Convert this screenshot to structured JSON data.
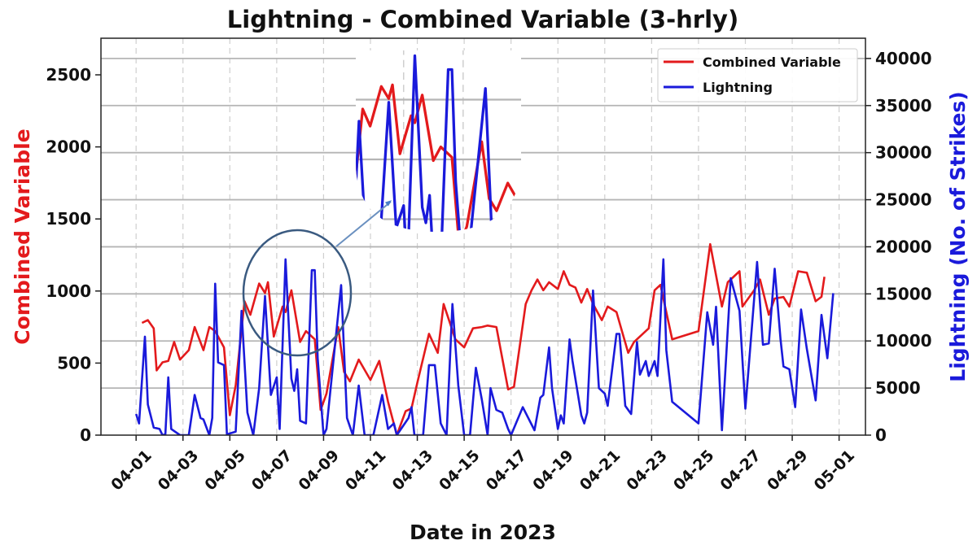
{
  "chart_data": {
    "type": "line",
    "title": "Lightning - Combined Variable (3-hrly)",
    "xlabel": "Date in 2023",
    "ylabel_left": "Combined Variable",
    "ylabel_right": "Lightning (No. of Strikes)",
    "year": 2023,
    "xlim": [
      "03-30 12:00",
      "05-02 03:00"
    ],
    "ylim_left": [
      0,
      2754
    ],
    "ylim_right": [
      0,
      42150
    ],
    "x_ticks": [
      "04-01",
      "04-03",
      "04-05",
      "04-07",
      "04-09",
      "04-11",
      "04-13",
      "04-15",
      "04-17",
      "04-19",
      "04-21",
      "04-23",
      "04-25",
      "04-27",
      "04-29",
      "05-01"
    ],
    "y_ticks_left": [
      0,
      500,
      1000,
      1500,
      2000,
      2500
    ],
    "y_ticks_right": [
      0,
      5000,
      10000,
      15000,
      20000,
      25000,
      30000,
      35000,
      40000
    ],
    "grid": true,
    "legend_position": "top-right",
    "colors": {
      "left_axis_label": "#e31a1c",
      "right_axis_label": "#1a1adb",
      "grid": "#b5b5b5",
      "annotation": "#3a5a80",
      "arrow": "#5b8ccc"
    },
    "inset": {
      "description_visible": false,
      "magnified_region": "04-06 to 04-09"
    },
    "series": [
      {
        "name": "Combined Variable",
        "axis": "left",
        "color": "#e31a1c",
        "points": [
          [
            "04-01 06:00",
            779
          ],
          [
            "04-01 12:00",
            798
          ],
          [
            "04-01 18:00",
            741
          ],
          [
            "04-01 21:00",
            449
          ],
          [
            "04-02 03:00",
            505
          ],
          [
            "04-02 09:00",
            515
          ],
          [
            "04-02 15:00",
            647
          ],
          [
            "04-02 21:00",
            524
          ],
          [
            "04-03 06:00",
            590
          ],
          [
            "04-03 12:00",
            750
          ],
          [
            "04-03 21:00",
            590
          ],
          [
            "04-04 03:00",
            750
          ],
          [
            "04-04 09:00",
            722
          ],
          [
            "04-04 18:00",
            609
          ],
          [
            "04-05 00:00",
            138
          ],
          [
            "04-05 06:00",
            345
          ],
          [
            "04-05 15:00",
            929
          ],
          [
            "04-05 21:00",
            835
          ],
          [
            "04-06 06:00",
            1052
          ],
          [
            "04-06 12:00",
            986
          ],
          [
            "04-06 15:00",
            1061
          ],
          [
            "04-06 21:00",
            684
          ],
          [
            "04-07 06:00",
            892
          ],
          [
            "04-07 09:00",
            854
          ],
          [
            "04-07 15:00",
            1005
          ],
          [
            "04-08 00:00",
            647
          ],
          [
            "04-08 06:00",
            722
          ],
          [
            "04-08 15:00",
            665
          ],
          [
            "04-08 21:00",
            175
          ],
          [
            "04-09 03:00",
            288
          ],
          [
            "04-09 15:00",
            750
          ],
          [
            "04-09 21:00",
            439
          ],
          [
            "04-10 03:00",
            373
          ],
          [
            "04-10 12:00",
            524
          ],
          [
            "04-11 00:00",
            383
          ],
          [
            "04-11 09:00",
            515
          ],
          [
            "04-11 18:00",
            232
          ],
          [
            "04-12 03:00",
            0
          ],
          [
            "04-12 12:00",
            166
          ],
          [
            "04-12 18:00",
            185
          ],
          [
            "04-13 00:00",
            364
          ],
          [
            "04-13 12:00",
            703
          ],
          [
            "04-13 21:00",
            571
          ],
          [
            "04-14 03:00",
            910
          ],
          [
            "04-14 15:00",
            665
          ],
          [
            "04-15 00:00",
            609
          ],
          [
            "04-15 09:00",
            741
          ],
          [
            "04-15 18:00",
            750
          ],
          [
            "04-16 00:00",
            760
          ],
          [
            "04-16 09:00",
            750
          ],
          [
            "04-16 21:00",
            317
          ],
          [
            "04-17 03:00",
            336
          ],
          [
            "04-17 15:00",
            910
          ],
          [
            "04-17 21:00",
            1005
          ],
          [
            "04-18 03:00",
            1080
          ],
          [
            "04-18 09:00",
            1005
          ],
          [
            "04-18 15:00",
            1061
          ],
          [
            "04-19 00:00",
            1014
          ],
          [
            "04-19 06:00",
            1137
          ],
          [
            "04-19 12:00",
            1043
          ],
          [
            "04-19 18:00",
            1024
          ],
          [
            "04-20 00:00",
            920
          ],
          [
            "04-20 06:00",
            1014
          ],
          [
            "04-20 12:00",
            910
          ],
          [
            "04-20 21:00",
            798
          ],
          [
            "04-21 03:00",
            892
          ],
          [
            "04-21 12:00",
            854
          ],
          [
            "04-22 00:00",
            571
          ],
          [
            "04-22 06:00",
            647
          ],
          [
            "04-22 21:00",
            741
          ],
          [
            "04-23 03:00",
            1005
          ],
          [
            "04-23 09:00",
            1043
          ],
          [
            "04-23 21:00",
            665
          ],
          [
            "04-25 00:00",
            722
          ],
          [
            "04-25 12:00",
            1325
          ],
          [
            "04-26 00:00",
            892
          ],
          [
            "04-26 06:00",
            1061
          ],
          [
            "04-26 18:00",
            1137
          ],
          [
            "04-26 21:00",
            892
          ],
          [
            "04-27 09:00",
            1005
          ],
          [
            "04-27 15:00",
            1080
          ],
          [
            "04-28 00:00",
            835
          ],
          [
            "04-28 06:00",
            948
          ],
          [
            "04-28 15:00",
            958
          ],
          [
            "04-28 21:00",
            892
          ],
          [
            "04-29 06:00",
            1137
          ],
          [
            "04-29 15:00",
            1127
          ],
          [
            "04-30 00:00",
            929
          ],
          [
            "04-30 06:00",
            960
          ],
          [
            "04-30 09:00",
            1099
          ]
        ]
      },
      {
        "name": "Lightning",
        "axis": "right",
        "color": "#1a1adb",
        "points": [
          [
            "04-01 00:00",
            2250
          ],
          [
            "04-01 03:00",
            1240
          ],
          [
            "04-01 09:00",
            10460
          ],
          [
            "04-01 12:00",
            3260
          ],
          [
            "04-01 18:00",
            800
          ],
          [
            "04-02 00:00",
            660
          ],
          [
            "04-02 03:00",
            0
          ],
          [
            "04-02 06:00",
            90
          ],
          [
            "04-02 09:00",
            6140
          ],
          [
            "04-02 12:00",
            660
          ],
          [
            "04-02 21:00",
            0
          ],
          [
            "04-03 06:00",
            0
          ],
          [
            "04-03 12:00",
            4270
          ],
          [
            "04-03 18:00",
            1820
          ],
          [
            "04-03 21:00",
            1670
          ],
          [
            "04-04 03:00",
            0
          ],
          [
            "04-04 06:00",
            1820
          ],
          [
            "04-04 09:00",
            16080
          ],
          [
            "04-04 12:00",
            7720
          ],
          [
            "04-04 18:00",
            7440
          ],
          [
            "04-04 21:00",
            90
          ],
          [
            "04-05 06:00",
            370
          ],
          [
            "04-05 12:00",
            13200
          ],
          [
            "04-05 18:00",
            2390
          ],
          [
            "04-06 00:00",
            0
          ],
          [
            "04-06 06:00",
            4990
          ],
          [
            "04-06 12:00",
            14780
          ],
          [
            "04-06 18:00",
            4270
          ],
          [
            "04-07 00:00",
            6140
          ],
          [
            "04-07 03:00",
            660
          ],
          [
            "04-07 09:00",
            18670
          ],
          [
            "04-07 15:00",
            5990
          ],
          [
            "04-07 18:00",
            4700
          ],
          [
            "04-07 21:00",
            7000
          ],
          [
            "04-08 00:00",
            1530
          ],
          [
            "04-08 06:00",
            1240
          ],
          [
            "04-08 12:00",
            17520
          ],
          [
            "04-08 15:00",
            17520
          ],
          [
            "04-08 18:00",
            8160
          ],
          [
            "04-09 00:00",
            0
          ],
          [
            "04-09 03:00",
            660
          ],
          [
            "04-09 18:00",
            15940
          ],
          [
            "04-10 00:00",
            1820
          ],
          [
            "04-10 06:00",
            0
          ],
          [
            "04-10 12:00",
            5270
          ],
          [
            "04-10 18:00",
            0
          ],
          [
            "04-11 03:00",
            0
          ],
          [
            "04-11 12:00",
            4270
          ],
          [
            "04-11 18:00",
            660
          ],
          [
            "04-12 00:00",
            1240
          ],
          [
            "04-12 03:00",
            0
          ],
          [
            "04-12 15:00",
            1820
          ],
          [
            "04-12 18:00",
            2970
          ],
          [
            "04-12 21:00",
            0
          ],
          [
            "04-13 06:00",
            0
          ],
          [
            "04-13 12:00",
            7440
          ],
          [
            "04-13 18:00",
            7440
          ],
          [
            "04-14 00:00",
            1240
          ],
          [
            "04-14 06:00",
            0
          ],
          [
            "04-14 12:00",
            13920
          ],
          [
            "04-14 18:00",
            5270
          ],
          [
            "04-15 00:00",
            0
          ],
          [
            "04-15 06:00",
            0
          ],
          [
            "04-15 12:00",
            7150
          ],
          [
            "04-15 18:00",
            3830
          ],
          [
            "04-16 00:00",
            0
          ],
          [
            "04-16 03:00",
            4990
          ],
          [
            "04-16 09:00",
            2680
          ],
          [
            "04-16 15:00",
            2390
          ],
          [
            "04-16 21:00",
            660
          ],
          [
            "04-17 00:00",
            0
          ],
          [
            "04-17 12:00",
            2970
          ],
          [
            "04-18 00:00",
            520
          ],
          [
            "04-18 06:00",
            3980
          ],
          [
            "04-18 09:00",
            4270
          ],
          [
            "04-18 15:00",
            9310
          ],
          [
            "04-18 18:00",
            4990
          ],
          [
            "04-19 00:00",
            660
          ],
          [
            "04-19 03:00",
            2100
          ],
          [
            "04-19 06:00",
            1240
          ],
          [
            "04-19 12:00",
            10170
          ],
          [
            "04-19 15:00",
            7870
          ],
          [
            "04-20 00:00",
            2100
          ],
          [
            "04-20 03:00",
            1240
          ],
          [
            "04-20 06:00",
            2390
          ],
          [
            "04-20 12:00",
            15360
          ],
          [
            "04-20 18:00",
            4990
          ],
          [
            "04-21 00:00",
            4410
          ],
          [
            "04-21 03:00",
            3110
          ],
          [
            "04-21 12:00",
            10750
          ],
          [
            "04-21 15:00",
            10750
          ],
          [
            "04-21 21:00",
            3110
          ],
          [
            "04-22 03:00",
            2250
          ],
          [
            "04-22 09:00",
            9880
          ],
          [
            "04-22 12:00",
            6430
          ],
          [
            "04-22 18:00",
            7870
          ],
          [
            "04-22 21:00",
            6280
          ],
          [
            "04-23 03:00",
            7870
          ],
          [
            "04-23 06:00",
            6280
          ],
          [
            "04-23 12:00",
            18670
          ],
          [
            "04-23 15:00",
            9020
          ],
          [
            "04-23 21:00",
            3540
          ],
          [
            "04-25 00:00",
            1240
          ],
          [
            "04-25 09:00",
            13050
          ],
          [
            "04-25 15:00",
            9600
          ],
          [
            "04-25 18:00",
            13630
          ],
          [
            "04-26 00:00",
            520
          ],
          [
            "04-26 09:00",
            16660
          ],
          [
            "04-26 18:00",
            13200
          ],
          [
            "04-27 00:00",
            2820
          ],
          [
            "04-27 12:00",
            18390
          ],
          [
            "04-27 18:00",
            9600
          ],
          [
            "04-28 00:00",
            9740
          ],
          [
            "04-28 06:00",
            17670
          ],
          [
            "04-28 12:00",
            10170
          ],
          [
            "04-28 15:00",
            7290
          ],
          [
            "04-28 21:00",
            7000
          ],
          [
            "04-29 03:00",
            2970
          ],
          [
            "04-29 09:00",
            13340
          ],
          [
            "04-29 15:00",
            9160
          ],
          [
            "04-30 00:00",
            3690
          ],
          [
            "04-30 06:00",
            12770
          ],
          [
            "04-30 12:00",
            8160
          ],
          [
            "04-30 18:00",
            15070
          ]
        ]
      }
    ]
  }
}
